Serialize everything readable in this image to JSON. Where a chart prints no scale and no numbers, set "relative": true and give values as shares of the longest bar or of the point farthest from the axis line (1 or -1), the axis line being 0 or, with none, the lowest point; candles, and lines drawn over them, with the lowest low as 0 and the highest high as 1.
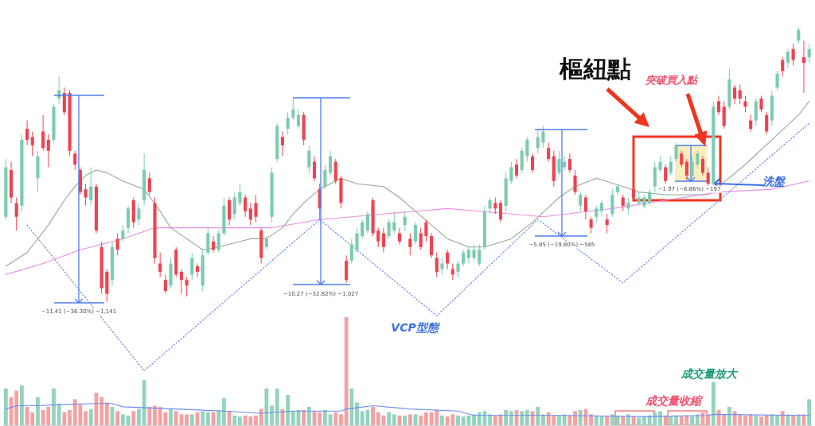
{
  "chart_data": [
    {
      "type": "candlestick",
      "relative": true,
      "categories": [
        null,
        null,
        null,
        null,
        null,
        null,
        null,
        null,
        null,
        null,
        null,
        null,
        null,
        null,
        null,
        null,
        null,
        null,
        null,
        null,
        null,
        null,
        null,
        null,
        null,
        null,
        null,
        null,
        null,
        null,
        null,
        null,
        null,
        null,
        null,
        null,
        null,
        null,
        null,
        null,
        null,
        null,
        null,
        null,
        null,
        null,
        null,
        null,
        null,
        null,
        null,
        null,
        null,
        null,
        null,
        null,
        null,
        null,
        null,
        null,
        null,
        null,
        null,
        null,
        null,
        null,
        null,
        null,
        null,
        null,
        null,
        null,
        null,
        null,
        null,
        null,
        null,
        null,
        null,
        null,
        null,
        null,
        null,
        null,
        null,
        null,
        null,
        null,
        null,
        null,
        null,
        null,
        null,
        null,
        null,
        null,
        null,
        null,
        null,
        null,
        null,
        null,
        null,
        null,
        null,
        null,
        null,
        null,
        null,
        null,
        null,
        null,
        null,
        null,
        null,
        null,
        null,
        null,
        null,
        null,
        null,
        null,
        null,
        null,
        null,
        null,
        null,
        null,
        null,
        null,
        null,
        null,
        null,
        null,
        null,
        null,
        null,
        null,
        null,
        null,
        null,
        null,
        null,
        null,
        null,
        null,
        null,
        null,
        null,
        null,
        null,
        null
      ],
      "ohlc": [
        [
          0.31,
          0.52,
          0.3,
          0.49
        ],
        [
          0.48,
          0.51,
          0.36,
          0.38
        ],
        [
          0.36,
          0.38,
          0.26,
          0.31
        ],
        [
          0.35,
          0.61,
          0.33,
          0.59
        ],
        [
          0.63,
          0.66,
          0.57,
          0.59
        ],
        [
          0.6,
          0.62,
          0.53,
          0.57
        ],
        [
          0.45,
          0.55,
          0.4,
          0.53
        ],
        [
          0.62,
          0.68,
          0.55,
          0.56
        ],
        [
          0.59,
          0.61,
          0.49,
          0.55
        ],
        [
          0.59,
          0.72,
          0.58,
          0.71
        ],
        [
          0.74,
          0.82,
          0.72,
          0.77
        ],
        [
          0.76,
          0.78,
          0.68,
          0.69
        ],
        [
          0.76,
          0.77,
          0.53,
          0.55
        ],
        [
          0.54,
          0.55,
          0.48,
          0.5
        ],
        [
          0.48,
          0.49,
          0.39,
          0.4
        ],
        [
          0.41,
          0.43,
          0.35,
          0.38
        ],
        [
          0.37,
          0.49,
          0.35,
          0.42
        ],
        [
          0.42,
          0.43,
          0.25,
          0.26
        ],
        [
          0.2,
          0.22,
          0.03,
          0.05
        ],
        [
          0.11,
          0.12,
          0.0,
          0.03
        ],
        [
          0.08,
          0.22,
          0.06,
          0.2
        ],
        [
          0.23,
          0.25,
          0.17,
          0.19
        ],
        [
          0.23,
          0.28,
          0.22,
          0.26
        ],
        [
          0.27,
          0.35,
          0.25,
          0.34
        ],
        [
          0.37,
          0.38,
          0.27,
          0.29
        ],
        [
          0.3,
          0.36,
          0.28,
          0.34
        ],
        [
          0.37,
          0.54,
          0.35,
          0.48
        ],
        [
          0.45,
          0.47,
          0.39,
          0.4
        ],
        [
          0.36,
          0.38,
          0.14,
          0.16
        ],
        [
          0.14,
          0.18,
          0.09,
          0.11
        ],
        [
          0.08,
          0.1,
          0.03,
          0.04
        ],
        [
          0.06,
          0.16,
          0.05,
          0.14
        ],
        [
          0.19,
          0.2,
          0.09,
          0.1
        ],
        [
          0.11,
          0.12,
          0.03,
          0.08
        ],
        [
          0.08,
          0.09,
          0.02,
          0.06
        ],
        [
          0.1,
          0.18,
          0.08,
          0.16
        ],
        [
          0.13,
          0.14,
          0.09,
          0.11
        ],
        [
          0.06,
          0.19,
          0.04,
          0.17
        ],
        [
          0.18,
          0.27,
          0.17,
          0.25
        ],
        [
          0.22,
          0.24,
          0.18,
          0.19
        ],
        [
          0.19,
          0.26,
          0.18,
          0.25
        ],
        [
          0.25,
          0.38,
          0.24,
          0.35
        ],
        [
          0.37,
          0.38,
          0.28,
          0.3
        ],
        [
          0.32,
          0.4,
          0.3,
          0.38
        ],
        [
          0.36,
          0.43,
          0.35,
          0.4
        ],
        [
          0.38,
          0.39,
          0.31,
          0.33
        ],
        [
          0.34,
          0.36,
          0.28,
          0.3
        ],
        [
          0.36,
          0.39,
          0.29,
          0.31
        ],
        [
          0.26,
          0.27,
          0.14,
          0.16
        ],
        [
          0.2,
          0.24,
          0.19,
          0.23
        ],
        [
          0.31,
          0.49,
          0.29,
          0.47
        ],
        [
          0.52,
          0.65,
          0.51,
          0.64
        ],
        [
          0.6,
          0.62,
          0.53,
          0.57
        ],
        [
          0.63,
          0.69,
          0.61,
          0.67
        ],
        [
          0.67,
          0.74,
          0.66,
          0.7
        ],
        [
          0.64,
          0.7,
          0.63,
          0.68
        ],
        [
          0.68,
          0.69,
          0.57,
          0.59
        ],
        [
          0.49,
          0.57,
          0.47,
          0.55
        ],
        [
          0.51,
          0.53,
          0.44,
          0.45
        ],
        [
          0.41,
          0.43,
          0.3,
          0.34
        ],
        [
          0.42,
          0.5,
          0.41,
          0.48
        ],
        [
          0.47,
          0.55,
          0.46,
          0.53
        ],
        [
          0.51,
          0.52,
          0.43,
          0.44
        ],
        [
          0.45,
          0.46,
          0.34,
          0.36
        ],
        [
          0.15,
          0.17,
          0.07,
          0.08
        ],
        [
          0.15,
          0.23,
          0.14,
          0.21
        ],
        [
          0.19,
          0.27,
          0.18,
          0.25
        ],
        [
          0.24,
          0.3,
          0.23,
          0.29
        ],
        [
          0.26,
          0.33,
          0.25,
          0.32
        ],
        [
          0.37,
          0.38,
          0.24,
          0.25
        ],
        [
          0.26,
          0.27,
          0.2,
          0.22
        ],
        [
          0.25,
          0.27,
          0.18,
          0.2
        ],
        [
          0.24,
          0.3,
          0.23,
          0.29
        ],
        [
          0.26,
          0.33,
          0.25,
          0.29
        ],
        [
          0.25,
          0.27,
          0.21,
          0.22
        ],
        [
          0.28,
          0.33,
          0.26,
          0.31
        ],
        [
          0.23,
          0.25,
          0.17,
          0.2
        ],
        [
          0.22,
          0.29,
          0.21,
          0.28
        ],
        [
          0.25,
          0.27,
          0.19,
          0.2
        ],
        [
          0.29,
          0.3,
          0.22,
          0.24
        ],
        [
          0.24,
          0.25,
          0.16,
          0.17
        ],
        [
          0.16,
          0.18,
          0.09,
          0.11
        ],
        [
          0.12,
          0.16,
          0.1,
          0.14
        ],
        [
          0.18,
          0.19,
          0.12,
          0.14
        ],
        [
          0.12,
          0.14,
          0.08,
          0.1
        ],
        [
          0.11,
          0.15,
          0.09,
          0.14
        ],
        [
          0.14,
          0.19,
          0.13,
          0.18
        ],
        [
          0.16,
          0.2,
          0.14,
          0.19
        ],
        [
          0.16,
          0.21,
          0.15,
          0.19
        ],
        [
          0.14,
          0.21,
          0.13,
          0.19
        ],
        [
          0.2,
          0.35,
          0.19,
          0.33
        ],
        [
          0.34,
          0.38,
          0.32,
          0.37
        ],
        [
          0.36,
          0.38,
          0.32,
          0.34
        ],
        [
          0.36,
          0.37,
          0.29,
          0.3
        ],
        [
          0.35,
          0.47,
          0.33,
          0.45
        ],
        [
          0.44,
          0.51,
          0.43,
          0.49
        ],
        [
          0.5,
          0.52,
          0.45,
          0.46
        ],
        [
          0.48,
          0.56,
          0.47,
          0.55
        ],
        [
          0.53,
          0.6,
          0.51,
          0.59
        ],
        [
          0.53,
          0.54,
          0.47,
          0.48
        ],
        [
          0.56,
          0.63,
          0.54,
          0.6
        ],
        [
          0.58,
          0.64,
          0.56,
          0.62
        ],
        [
          0.56,
          0.58,
          0.51,
          0.52
        ],
        [
          0.53,
          0.55,
          0.42,
          0.44
        ],
        [
          0.47,
          0.55,
          0.46,
          0.52
        ],
        [
          0.49,
          0.53,
          0.48,
          0.51
        ],
        [
          0.52,
          0.54,
          0.47,
          0.48
        ],
        [
          0.46,
          0.48,
          0.39,
          0.4
        ],
        [
          0.35,
          0.4,
          0.33,
          0.39
        ],
        [
          0.38,
          0.39,
          0.3,
          0.33
        ],
        [
          0.3,
          0.31,
          0.25,
          0.27
        ],
        [
          0.31,
          0.35,
          0.29,
          0.34
        ],
        [
          0.33,
          0.37,
          0.31,
          0.36
        ],
        [
          0.3,
          0.32,
          0.25,
          0.28
        ],
        [
          0.32,
          0.41,
          0.31,
          0.39
        ],
        [
          0.4,
          0.43,
          0.39,
          0.42
        ],
        [
          0.38,
          0.39,
          0.33,
          0.35
        ],
        [
          0.34,
          0.38,
          0.32,
          0.36
        ],
        [
          0.41,
          0.43,
          0.37,
          0.38
        ],
        [
          0.36,
          0.4,
          0.35,
          0.38
        ],
        [
          0.35,
          0.39,
          0.34,
          0.38
        ],
        [
          0.36,
          0.41,
          0.35,
          0.4
        ],
        [
          0.42,
          0.51,
          0.4,
          0.49
        ],
        [
          0.48,
          0.53,
          0.47,
          0.51
        ],
        [
          0.49,
          0.5,
          0.43,
          0.44
        ],
        [
          0.47,
          0.53,
          0.46,
          0.51
        ],
        [
          0.52,
          0.58,
          0.51,
          0.57
        ],
        [
          0.54,
          0.55,
          0.49,
          0.5
        ],
        [
          0.51,
          0.52,
          0.44,
          0.46
        ],
        [
          0.46,
          0.53,
          0.45,
          0.51
        ],
        [
          0.5,
          0.55,
          0.49,
          0.54
        ],
        [
          0.52,
          0.53,
          0.46,
          0.47
        ],
        [
          0.47,
          0.49,
          0.42,
          0.43
        ],
        [
          0.43,
          0.73,
          0.42,
          0.71
        ],
        [
          0.73,
          0.75,
          0.68,
          0.69
        ],
        [
          0.71,
          0.73,
          0.63,
          0.64
        ],
        [
          0.71,
          0.85,
          0.7,
          0.81
        ],
        [
          0.78,
          0.79,
          0.72,
          0.74
        ],
        [
          0.77,
          0.79,
          0.72,
          0.74
        ],
        [
          0.73,
          0.75,
          0.69,
          0.71
        ],
        [
          0.66,
          0.68,
          0.62,
          0.63
        ],
        [
          0.66,
          0.74,
          0.64,
          0.73
        ],
        [
          0.74,
          0.75,
          0.69,
          0.7
        ],
        [
          0.68,
          0.69,
          0.61,
          0.62
        ],
        [
          0.66,
          0.77,
          0.64,
          0.75
        ],
        [
          0.78,
          0.84,
          0.77,
          0.83
        ],
        [
          0.88,
          0.89,
          0.82,
          0.84
        ],
        [
          0.87,
          0.92,
          0.85,
          0.91
        ],
        [
          0.92,
          0.94,
          0.86,
          0.88
        ],
        [
          0.95,
          1.0,
          0.94,
          0.99
        ],
        [
          0.89,
          0.95,
          0.76,
          0.87
        ],
        [
          0.89,
          0.94,
          0.87,
          0.92
        ]
      ],
      "colors": [
        "#7ccbb1",
        "#ee4351",
        "#ee4351",
        "#7ccbb1",
        "#ee4351",
        "#ee4351",
        "#7ccbb1",
        "#ee4351",
        "#ee4351",
        "#7ccbb1",
        "#7ccbb1",
        "#ee4351",
        "#ee4351",
        "#ee4351",
        "#ee4351",
        "#ee4351",
        "#7ccbb1",
        "#ee4351",
        "#ee4351",
        "#ee4351",
        "#7ccbb1",
        "#ee4351",
        "#7ccbb1",
        "#7ccbb1",
        "#ee4351",
        "#7ccbb1",
        "#7ccbb1",
        "#ee4351",
        "#ee4351",
        "#ee4351",
        "#ee4351",
        "#7ccbb1",
        "#ee4351",
        "#ee4351",
        "#ee4351",
        "#7ccbb1",
        "#ee4351",
        "#7ccbb1",
        "#7ccbb1",
        "#ee4351",
        "#7ccbb1",
        "#7ccbb1",
        "#ee4351",
        "#7ccbb1",
        "#7ccbb1",
        "#ee4351",
        "#ee4351",
        "#ee4351",
        "#ee4351",
        "#7ccbb1",
        "#7ccbb1",
        "#7ccbb1",
        "#ee4351",
        "#7ccbb1",
        "#7ccbb1",
        "#7ccbb1",
        "#ee4351",
        "#7ccbb1",
        "#ee4351",
        "#ee4351",
        "#7ccbb1",
        "#7ccbb1",
        "#ee4351",
        "#ee4351",
        "#ee4351",
        "#7ccbb1",
        "#7ccbb1",
        "#7ccbb1",
        "#7ccbb1",
        "#ee4351",
        "#ee4351",
        "#ee4351",
        "#7ccbb1",
        "#7ccbb1",
        "#ee4351",
        "#7ccbb1",
        "#ee4351",
        "#7ccbb1",
        "#ee4351",
        "#ee4351",
        "#ee4351",
        "#ee4351",
        "#7ccbb1",
        "#ee4351",
        "#ee4351",
        "#7ccbb1",
        "#7ccbb1",
        "#7ccbb1",
        "#7ccbb1",
        "#7ccbb1",
        "#7ccbb1",
        "#7ccbb1",
        "#ee4351",
        "#ee4351",
        "#7ccbb1",
        "#7ccbb1",
        "#ee4351",
        "#7ccbb1",
        "#7ccbb1",
        "#ee4351",
        "#7ccbb1",
        "#7ccbb1",
        "#ee4351",
        "#ee4351",
        "#7ccbb1",
        "#7ccbb1",
        "#ee4351",
        "#ee4351",
        "#7ccbb1",
        "#ee4351",
        "#ee4351",
        "#7ccbb1",
        "#7ccbb1",
        "#ee4351",
        "#7ccbb1",
        "#7ccbb1",
        "#ee4351",
        "#7ccbb1",
        "#ee4351",
        "#7ccbb1",
        "#7ccbb1",
        "#7ccbb1",
        "#7ccbb1",
        "#7ccbb1",
        "#ee4351",
        "#7ccbb1",
        "#7ccbb1",
        "#ee4351",
        "#ee4351",
        "#7ccbb1",
        "#7ccbb1",
        "#ee4351",
        "#ee4351",
        "#7ccbb1",
        "#ee4351",
        "#ee4351",
        "#7ccbb1",
        "#ee4351",
        "#ee4351",
        "#ee4351",
        "#ee4351",
        "#7ccbb1",
        "#ee4351",
        "#ee4351",
        "#7ccbb1",
        "#7ccbb1",
        "#ee4351",
        "#7ccbb1",
        "#ee4351",
        "#7ccbb1",
        "#ee4351",
        "#7ccbb1"
      ],
      "series": [
        {
          "type": "line",
          "color": "#93a893",
          "values": [
            0.13,
            null,
            null,
            null,
            0.18,
            null,
            null,
            null,
            0.28,
            null,
            null,
            0.37,
            null,
            0.42,
            null,
            0.46,
            null,
            0.48,
            null,
            0.47,
            null,
            null,
            0.44,
            null,
            null,
            null,
            0.41,
            null,
            null,
            0.33,
            null,
            0.27,
            null,
            null,
            0.23,
            null,
            null,
            0.19,
            null,
            null,
            0.2,
            null,
            null,
            null,
            null,
            null,
            0.23,
            null,
            null,
            0.23,
            null,
            null,
            0.27,
            null,
            0.32,
            null,
            0.36,
            null,
            null,
            0.41,
            null,
            null,
            null,
            0.45,
            null,
            null,
            0.43,
            null,
            null,
            null,
            null,
            0.42,
            null,
            null,
            0.38,
            null,
            null,
            0.33,
            null,
            null,
            0.28,
            null,
            null,
            0.23,
            null,
            null,
            null,
            0.2,
            null,
            null,
            0.2,
            null,
            null,
            null,
            null,
            0.23,
            null,
            null,
            null,
            0.29,
            null,
            null,
            null,
            null,
            0.38,
            null,
            null,
            0.42,
            null,
            null,
            null,
            0.45,
            null,
            null,
            null,
            null,
            0.42,
            null,
            null,
            0.4,
            null,
            null,
            null,
            null,
            0.39,
            null,
            null,
            null,
            null,
            null,
            null,
            null,
            0.39,
            null,
            0.42,
            null,
            null,
            null,
            null,
            0.5,
            null,
            null,
            null,
            null,
            0.59,
            null,
            null,
            null,
            null,
            0.68,
            null,
            0.73
          ]
        },
        {
          "type": "line",
          "color": "#ec8ce6",
          "values": [
            0.1,
            null,
            null,
            null,
            null,
            null,
            null,
            0.14,
            null,
            null,
            null,
            null,
            null,
            null,
            0.19,
            null,
            null,
            null,
            null,
            null,
            null,
            null,
            0.23,
            null,
            null,
            null,
            null,
            null,
            0.27,
            null,
            null,
            null,
            null,
            null,
            null,
            null,
            null,
            null,
            0.27,
            null,
            null,
            null,
            null,
            null,
            null,
            null,
            null,
            null,
            null,
            null,
            0.27,
            null,
            null,
            null,
            null,
            null,
            null,
            null,
            null,
            0.3,
            null,
            null,
            null,
            null,
            null,
            null,
            null,
            null,
            null,
            null,
            null,
            0.32,
            null,
            null,
            null,
            null,
            null,
            null,
            null,
            null,
            null,
            null,
            null,
            0.34,
            null,
            null,
            null,
            null,
            null,
            0.33,
            null,
            null,
            null,
            null,
            null,
            null,
            null,
            null,
            null,
            null,
            null,
            0.31,
            null,
            null,
            null,
            null,
            null,
            null,
            null,
            null,
            null,
            null,
            null,
            null,
            0.34,
            null,
            null,
            null,
            null,
            null,
            null,
            null,
            null,
            null,
            0.37,
            null,
            null,
            null,
            null,
            null,
            null,
            null,
            null,
            null,
            0.4,
            null,
            null,
            null,
            null,
            null,
            null,
            null,
            null,
            null,
            0.41,
            null,
            null,
            null,
            null,
            null,
            null,
            0.44
          ]
        },
        {
          "type": "line",
          "color": "#5b7fe8",
          "line_style": "dotted",
          "values": [
            null,
            null,
            null,
            null,
            0.28,
            null,
            null,
            null,
            null,
            null,
            null,
            null,
            null,
            null,
            null,
            null,
            null,
            null,
            null,
            null,
            null,
            null,
            null,
            null,
            null,
            null,
            -0.25,
            null,
            null,
            null,
            null,
            null,
            null,
            null,
            null,
            null,
            null,
            null,
            null,
            null,
            null,
            null,
            null,
            null,
            null,
            null,
            null,
            null,
            null,
            null,
            null,
            null,
            null,
            null,
            null,
            null,
            null,
            null,
            null,
            0.3,
            null,
            null,
            null,
            null,
            null,
            null,
            null,
            null,
            null,
            null,
            null,
            null,
            null,
            null,
            null,
            null,
            null,
            null,
            null,
            null,
            null,
            -0.05,
            null,
            null,
            null,
            null,
            null,
            null,
            null,
            null,
            null,
            null,
            null,
            null,
            null,
            null,
            null,
            null,
            null,
            null,
            0.3,
            null,
            null,
            null,
            null,
            null,
            null,
            null,
            null,
            null,
            null,
            null,
            null,
            null,
            null,
            null,
            0.07,
            null,
            null,
            null,
            null,
            null,
            null,
            null,
            null,
            null,
            null,
            null,
            null,
            null,
            null,
            null,
            null,
            null,
            null,
            null,
            null,
            null,
            null,
            null,
            null,
            null,
            null,
            null,
            null,
            null,
            null,
            null,
            null,
            null,
            null,
            0.65
          ]
        }
      ],
      "annotations": [
        "樞紐點",
        "突破買入點",
        "洗盤",
        "−11.41 (−36.30%) −1,141",
        "−10.27 (−32.82%) −1,027",
        "−5.85 (−19.80%) −585",
        "−1.97 (−6.86%) −197",
        "VCP型態"
      ]
    },
    {
      "type": "bar",
      "relative": true,
      "categories": [
        null,
        null,
        null,
        null,
        null,
        null,
        null,
        null,
        null,
        null,
        null,
        null,
        null,
        null,
        null,
        null,
        null,
        null,
        null,
        null,
        null,
        null,
        null,
        null,
        null,
        null,
        null,
        null,
        null,
        null,
        null,
        null,
        null,
        null,
        null,
        null,
        null,
        null,
        null,
        null,
        null,
        null,
        null,
        null,
        null,
        null,
        null,
        null,
        null,
        null,
        null,
        null,
        null,
        null,
        null,
        null,
        null,
        null,
        null,
        null,
        null,
        null,
        null,
        null,
        null,
        null,
        null,
        null,
        null,
        null,
        null,
        null,
        null,
        null,
        null,
        null,
        null,
        null,
        null,
        null,
        null,
        null,
        null,
        null,
        null,
        null,
        null,
        null,
        null,
        null,
        null,
        null,
        null,
        null,
        null,
        null,
        null,
        null,
        null,
        null,
        null,
        null,
        null,
        null,
        null,
        null,
        null,
        null,
        null,
        null,
        null,
        null,
        null,
        null,
        null,
        null,
        null,
        null,
        null,
        null,
        null,
        null,
        null,
        null,
        null,
        null,
        null,
        null,
        null,
        null,
        null,
        null,
        null,
        null,
        null,
        null,
        null,
        null,
        null,
        null,
        null,
        null,
        null,
        null,
        null,
        null,
        null,
        null,
        null,
        null,
        null,
        null
      ],
      "values": [
        0.34,
        0.26,
        0.32,
        0.37,
        0.17,
        0.12,
        0.26,
        0.14,
        0.17,
        0.34,
        0.2,
        0.12,
        0.14,
        0.24,
        0.19,
        0.13,
        0.15,
        0.3,
        0.26,
        0.21,
        0.17,
        0.13,
        0.1,
        0.09,
        0.13,
        0.15,
        0.42,
        0.17,
        0.18,
        0.17,
        0.12,
        0.15,
        0.13,
        0.1,
        0.1,
        0.1,
        0.12,
        0.13,
        0.12,
        0.12,
        0.14,
        0.25,
        0.13,
        0.09,
        0.08,
        0.09,
        0.08,
        0.09,
        0.15,
        0.34,
        0.18,
        0.34,
        0.15,
        0.28,
        0.13,
        0.14,
        0.14,
        0.17,
        0.13,
        0.12,
        0.14,
        0.1,
        0.12,
        0.1,
        1.0,
        0.34,
        0.21,
        0.13,
        0.14,
        0.17,
        0.12,
        0.09,
        0.12,
        0.1,
        0.09,
        0.09,
        0.1,
        0.1,
        0.09,
        0.12,
        0.12,
        0.14,
        0.09,
        0.08,
        0.1,
        0.09,
        0.08,
        0.09,
        0.1,
        0.12,
        0.13,
        0.1,
        0.09,
        0.1,
        0.14,
        0.13,
        0.14,
        0.13,
        0.14,
        0.13,
        0.17,
        0.1,
        0.12,
        0.09,
        0.09,
        0.1,
        0.09,
        0.13,
        0.14,
        0.15,
        0.1,
        0.09,
        0.08,
        0.09,
        0.1,
        0.09,
        0.08,
        0.1,
        0.08,
        0.07,
        0.08,
        0.09,
        0.12,
        0.13,
        0.09,
        0.08,
        0.09,
        0.08,
        0.09,
        0.08,
        0.1,
        0.12,
        0.1,
        0.4,
        0.14,
        0.1,
        0.17,
        0.13,
        0.1,
        0.09,
        0.1,
        0.09,
        0.08,
        0.09,
        0.1,
        0.09,
        0.13,
        0.1,
        0.09,
        0.1,
        0.1,
        0.24
      ],
      "colors": [
        "#93d3bf",
        "#f5a1a1",
        "#f5a1a1",
        "#93d3bf",
        "#f5a1a1",
        "#f5a1a1",
        "#93d3bf",
        "#f5a1a1",
        "#f5a1a1",
        "#93d3bf",
        "#93d3bf",
        "#f5a1a1",
        "#f5a1a1",
        "#f5a1a1",
        "#f5a1a1",
        "#f5a1a1",
        "#93d3bf",
        "#f5a1a1",
        "#f5a1a1",
        "#f5a1a1",
        "#93d3bf",
        "#f5a1a1",
        "#93d3bf",
        "#93d3bf",
        "#f5a1a1",
        "#93d3bf",
        "#93d3bf",
        "#f5a1a1",
        "#f5a1a1",
        "#f5a1a1",
        "#f5a1a1",
        "#93d3bf",
        "#f5a1a1",
        "#f5a1a1",
        "#f5a1a1",
        "#93d3bf",
        "#f5a1a1",
        "#93d3bf",
        "#93d3bf",
        "#f5a1a1",
        "#93d3bf",
        "#93d3bf",
        "#f5a1a1",
        "#93d3bf",
        "#93d3bf",
        "#f5a1a1",
        "#f5a1a1",
        "#f5a1a1",
        "#f5a1a1",
        "#93d3bf",
        "#93d3bf",
        "#93d3bf",
        "#f5a1a1",
        "#93d3bf",
        "#93d3bf",
        "#93d3bf",
        "#f5a1a1",
        "#93d3bf",
        "#f5a1a1",
        "#f5a1a1",
        "#93d3bf",
        "#93d3bf",
        "#f5a1a1",
        "#f5a1a1",
        "#f5a1a1",
        "#93d3bf",
        "#93d3bf",
        "#93d3bf",
        "#93d3bf",
        "#f5a1a1",
        "#f5a1a1",
        "#f5a1a1",
        "#93d3bf",
        "#93d3bf",
        "#f5a1a1",
        "#93d3bf",
        "#f5a1a1",
        "#93d3bf",
        "#f5a1a1",
        "#f5a1a1",
        "#f5a1a1",
        "#f5a1a1",
        "#93d3bf",
        "#f5a1a1",
        "#f5a1a1",
        "#93d3bf",
        "#93d3bf",
        "#93d3bf",
        "#93d3bf",
        "#93d3bf",
        "#93d3bf",
        "#93d3bf",
        "#f5a1a1",
        "#f5a1a1",
        "#93d3bf",
        "#93d3bf",
        "#f5a1a1",
        "#93d3bf",
        "#93d3bf",
        "#f5a1a1",
        "#93d3bf",
        "#93d3bf",
        "#f5a1a1",
        "#f5a1a1",
        "#93d3bf",
        "#93d3bf",
        "#f5a1a1",
        "#f5a1a1",
        "#93d3bf",
        "#f5a1a1",
        "#f5a1a1",
        "#93d3bf",
        "#93d3bf",
        "#f5a1a1",
        "#93d3bf",
        "#93d3bf",
        "#f5a1a1",
        "#93d3bf",
        "#f5a1a1",
        "#93d3bf",
        "#93d3bf",
        "#93d3bf",
        "#93d3bf",
        "#93d3bf",
        "#f5a1a1",
        "#93d3bf",
        "#93d3bf",
        "#f5a1a1",
        "#f5a1a1",
        "#93d3bf",
        "#93d3bf",
        "#f5a1a1",
        "#f5a1a1",
        "#93d3bf",
        "#f5a1a1",
        "#f5a1a1",
        "#93d3bf",
        "#f5a1a1",
        "#f5a1a1",
        "#f5a1a1",
        "#f5a1a1",
        "#93d3bf",
        "#f5a1a1",
        "#f5a1a1",
        "#93d3bf",
        "#93d3bf",
        "#f5a1a1",
        "#93d3bf",
        "#f5a1a1",
        "#93d3bf",
        "#f5a1a1",
        "#93d3bf"
      ],
      "series": [
        {
          "type": "line",
          "color": "#6e8ef0",
          "values": [
            0.15,
            null,
            0.18,
            null,
            null,
            null,
            0.18,
            null,
            null,
            null,
            0.19,
            null,
            null,
            null,
            null,
            null,
            null,
            0.2,
            null,
            null,
            0.2,
            null,
            0.17,
            null,
            null,
            null,
            null,
            null,
            null,
            null,
            null,
            null,
            0.15,
            null,
            null,
            null,
            null,
            null,
            null,
            null,
            null,
            0.13,
            null,
            null,
            null,
            null,
            null,
            null,
            0.11,
            null,
            null,
            null,
            null,
            null,
            0.13,
            null,
            null,
            null,
            null,
            null,
            null,
            null,
            null,
            0.13,
            0.15,
            null,
            null,
            null,
            null,
            0.18,
            null,
            null,
            null,
            null,
            null,
            null,
            0.15,
            null,
            null,
            null,
            null,
            null,
            null,
            null,
            null,
            0.13,
            null,
            null,
            0.09,
            null,
            null,
            null,
            null,
            null,
            null,
            null,
            null,
            null,
            null,
            null,
            null,
            null,
            null,
            null,
            null,
            0.09,
            null,
            null,
            null,
            null,
            null,
            null,
            null,
            null,
            null,
            null,
            null,
            null,
            null,
            null,
            0.08,
            null,
            null,
            null,
            null,
            null,
            null,
            null,
            null,
            null,
            null,
            null,
            0.09,
            0.1,
            null,
            null,
            null,
            null,
            null,
            null,
            null,
            null,
            null,
            null,
            null,
            null,
            null,
            null,
            null,
            null,
            0.09,
            0.09
          ]
        }
      ],
      "annotations": [
        "成交量放大",
        "成交量收縮"
      ]
    }
  ]
}
